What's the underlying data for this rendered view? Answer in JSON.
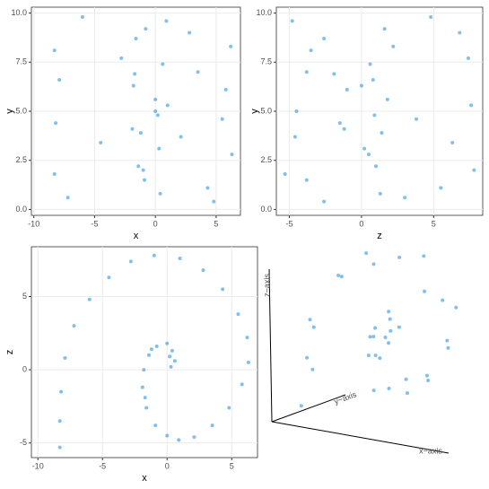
{
  "chart_data": [
    {
      "type": "scatter",
      "xlabel": "x",
      "ylabel": "y",
      "color": "#2c96de",
      "grid": true,
      "xlim": [
        -10.2,
        7
      ],
      "xticks": [
        -10,
        -5,
        0,
        5
      ],
      "ylim": [
        -0.3,
        10.3
      ],
      "yticks": [
        {
          "value": 0,
          "label": "0.0"
        },
        {
          "value": 2.5,
          "label": "2.5"
        },
        {
          "value": 5,
          "label": "5.0"
        },
        {
          "value": 7.5,
          "label": "7.5"
        },
        {
          "value": 10,
          "label": "10.0"
        }
      ],
      "x": [
        0.3,
        0.6,
        0.4,
        0,
        -0.8,
        -1.4,
        -1.8,
        -1.9,
        -1.6,
        -0.9,
        0,
        0.9,
        2.1,
        3.5,
        4.8,
        5.8,
        6.3,
        6.2,
        5.5,
        4.3,
        2.8,
        1.0,
        -1.0,
        -2.8,
        -4.5,
        -6.0,
        -7.2,
        -7.9,
        -8.2,
        -8.3,
        -8.3,
        -1.7,
        0.2,
        -1.2
      ],
      "y": [
        3.1,
        7.4,
        0.8,
        5.6,
        9.2,
        2.2,
        6.3,
        4.1,
        8.7,
        1.5,
        5.0,
        9.6,
        3.7,
        7.0,
        0.4,
        6.1,
        2.8,
        8.3,
        4.6,
        1.1,
        9.0,
        5.3,
        2.0,
        7.7,
        3.4,
        9.8,
        0.6,
        6.6,
        4.4,
        8.1,
        1.8,
        6.9,
        4.8,
        3.9
      ]
    },
    {
      "type": "scatter",
      "xlabel": "z",
      "ylabel": "y",
      "color": "#2c96de",
      "grid": true,
      "xlim": [
        -5.9,
        8.4
      ],
      "xticks": [
        -5,
        0,
        5
      ],
      "ylim": [
        -0.3,
        10.3
      ],
      "yticks": [
        {
          "value": 0,
          "label": "0.0"
        },
        {
          "value": 2.5,
          "label": "2.5"
        },
        {
          "value": 5,
          "label": "5.0"
        },
        {
          "value": 7.5,
          "label": "7.5"
        },
        {
          "value": 10,
          "label": "10.0"
        }
      ],
      "x": [
        0.2,
        0.6,
        1.3,
        1.8,
        1.6,
        1.0,
        0,
        -1.2,
        -2.6,
        -3.8,
        -4.5,
        -4.8,
        -4.6,
        -3.8,
        -2.6,
        -1.0,
        0.5,
        2.2,
        3.8,
        5.5,
        6.8,
        7.6,
        7.8,
        7.4,
        6.3,
        4.8,
        3.0,
        0.8,
        -1.5,
        -3.5,
        -5.3,
        -1.9,
        0.9,
        1.4
      ],
      "y": [
        3.1,
        7.4,
        0.8,
        5.6,
        9.2,
        2.2,
        6.3,
        4.1,
        8.7,
        1.5,
        5.0,
        9.6,
        3.7,
        7.0,
        0.4,
        6.1,
        2.8,
        8.3,
        4.6,
        1.1,
        9.0,
        5.3,
        2.0,
        7.7,
        3.4,
        9.8,
        0.6,
        6.6,
        4.4,
        8.1,
        1.8,
        6.9,
        4.8,
        3.9
      ]
    },
    {
      "type": "scatter",
      "xlabel": "x",
      "ylabel": "z",
      "color": "#2c96de",
      "grid": true,
      "xlim": [
        -10.5,
        7
      ],
      "xticks": [
        -10,
        -5,
        0,
        5
      ],
      "ylim": [
        -6,
        8.4
      ],
      "yticks": [
        -5,
        0,
        5
      ],
      "x": [
        0.3,
        0.6,
        0.4,
        0,
        -0.8,
        -1.4,
        -1.8,
        -1.9,
        -1.6,
        -0.9,
        0,
        0.9,
        2.1,
        3.5,
        4.8,
        5.8,
        6.3,
        6.2,
        5.5,
        4.3,
        2.8,
        1.0,
        -1.0,
        -2.8,
        -4.5,
        -6.0,
        -7.2,
        -7.9,
        -8.2,
        -8.3,
        -8.3,
        -1.7,
        0.2,
        -1.2
      ],
      "y": [
        0.2,
        0.6,
        1.3,
        1.8,
        1.6,
        1.0,
        0,
        -1.2,
        -2.6,
        -3.8,
        -4.5,
        -4.8,
        -4.6,
        -3.8,
        -2.6,
        -1.0,
        0.5,
        2.2,
        3.8,
        5.5,
        6.8,
        7.6,
        7.8,
        7.4,
        6.3,
        4.8,
        3.0,
        0.8,
        -1.5,
        -3.5,
        -5.3,
        -1.9,
        0.9,
        1.4
      ]
    },
    {
      "type": "scatter3d",
      "xlabel": "x−axis",
      "ylabel": "y−axis",
      "zlabel": "z−axis",
      "color": "#2c96de",
      "x": [
        0.3,
        0.6,
        0.4,
        0,
        -0.8,
        -1.4,
        -1.8,
        -1.9,
        -1.6,
        -0.9,
        0,
        0.9,
        2.1,
        3.5,
        4.8,
        5.8,
        6.3,
        6.2,
        5.5,
        4.3,
        2.8,
        1.0,
        -1.0,
        -2.8,
        -4.5,
        -6.0,
        -7.2,
        -7.9,
        -8.2,
        -8.3,
        -8.3,
        -1.7,
        0.2,
        -1.2
      ],
      "y": [
        3.1,
        7.4,
        0.8,
        5.6,
        9.2,
        2.2,
        6.3,
        4.1,
        8.7,
        1.5,
        5.0,
        9.6,
        3.7,
        7.0,
        0.4,
        6.1,
        2.8,
        8.3,
        4.6,
        1.1,
        9.0,
        5.3,
        2.0,
        7.7,
        3.4,
        9.8,
        0.6,
        6.6,
        4.4,
        8.1,
        1.8,
        6.9,
        4.8,
        3.9
      ],
      "z": [
        0.2,
        0.6,
        1.3,
        1.8,
        1.6,
        1.0,
        0,
        -1.2,
        -2.6,
        -3.8,
        -4.5,
        -4.8,
        -4.6,
        -3.8,
        -2.6,
        -1.0,
        0.5,
        2.2,
        3.8,
        5.5,
        6.8,
        7.6,
        7.8,
        7.4,
        6.3,
        4.8,
        3.0,
        0.8,
        -1.5,
        -3.5,
        -5.3,
        -1.9,
        0.9,
        1.4
      ]
    }
  ]
}
